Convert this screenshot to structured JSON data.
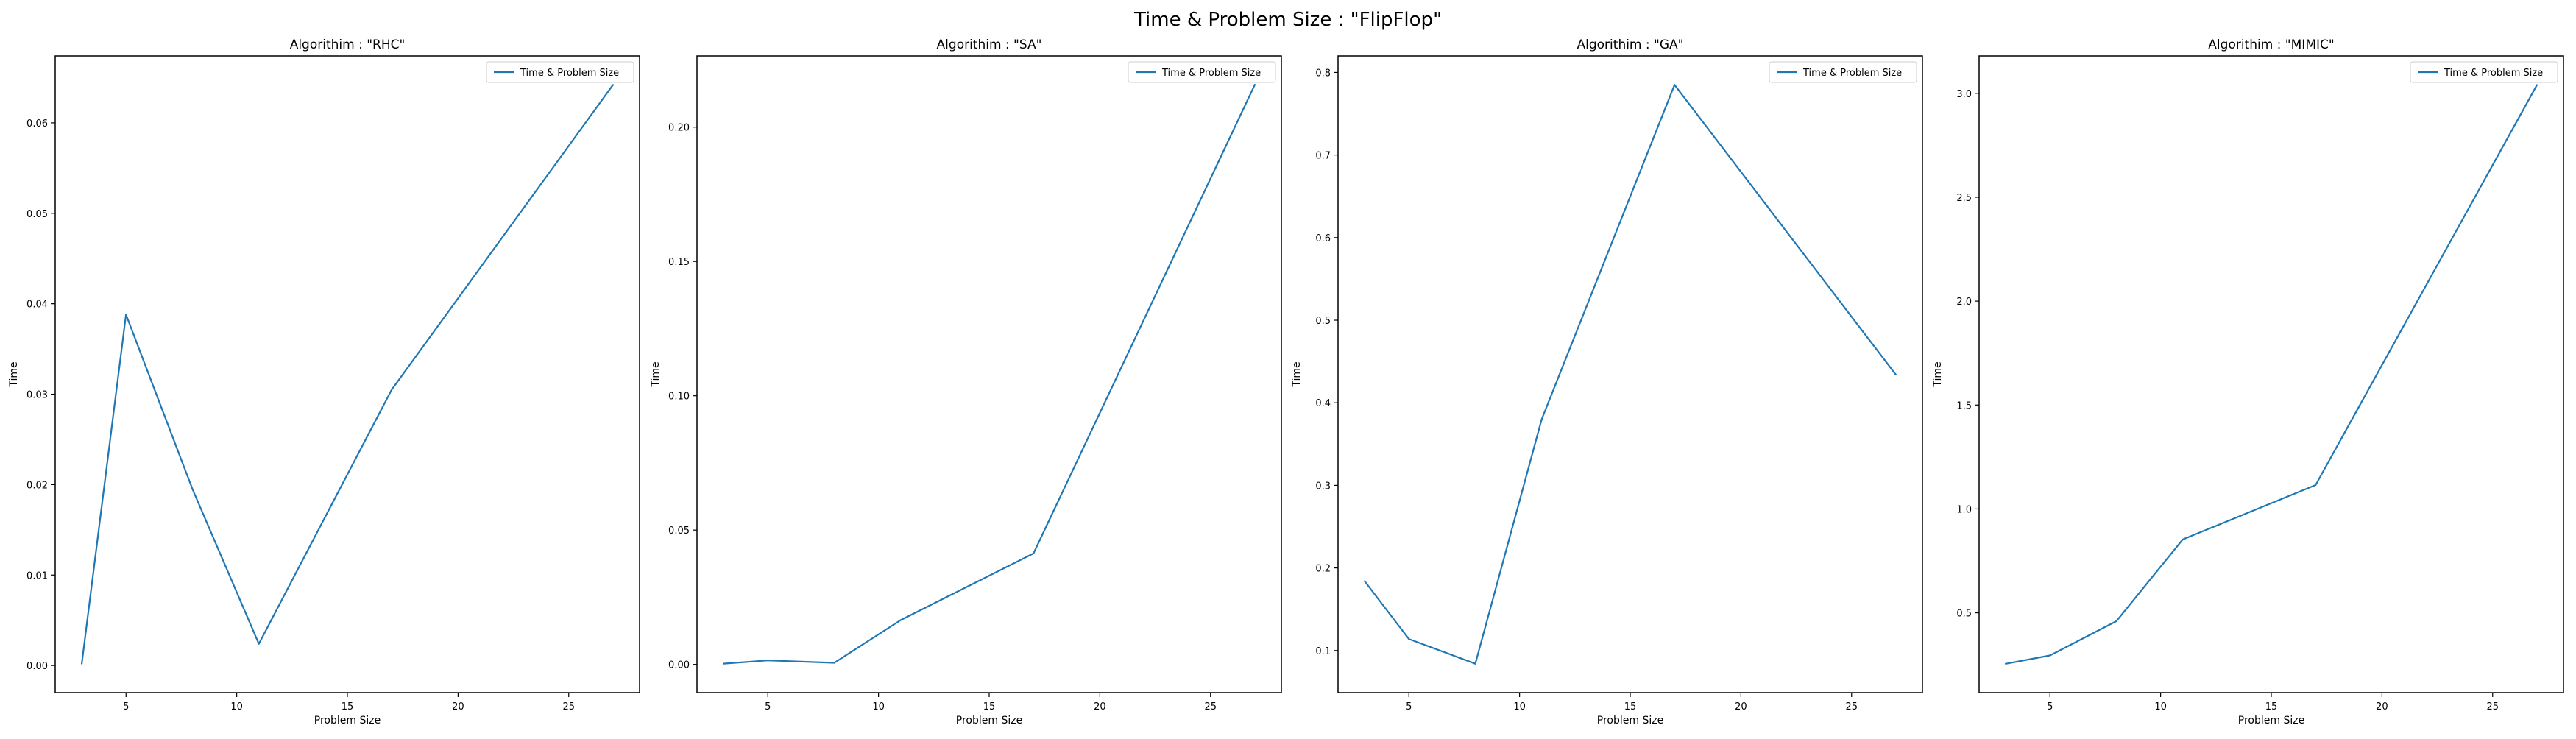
{
  "figure": {
    "title": "Time & Problem Size : \"FlipFlop\""
  },
  "chart_data": [
    {
      "type": "line",
      "title": "Algorithim : \"RHC\"",
      "xlabel": "Problem Size",
      "ylabel": "Time",
      "series": [
        {
          "name": "Time & Problem Size",
          "color": "#1f77b4",
          "x": [
            3,
            5,
            8,
            11,
            17,
            27
          ],
          "y": [
            0.0002,
            0.0388,
            0.0195,
            0.0024,
            0.0305,
            0.0642
          ]
        }
      ],
      "xlim": [
        1.8,
        28.2
      ],
      "ylim": [
        -0.003,
        0.0674
      ],
      "xticks": [
        5,
        10,
        15,
        20,
        25
      ],
      "xtick_labels": [
        "5",
        "10",
        "15",
        "20",
        "25"
      ],
      "yticks": [
        0.0,
        0.01,
        0.02,
        0.03,
        0.04,
        0.05,
        0.06
      ],
      "ytick_labels": [
        "0.00",
        "0.01",
        "0.02",
        "0.03",
        "0.04",
        "0.05",
        "0.06"
      ],
      "legend": "upper right",
      "grid": false
    },
    {
      "type": "line",
      "title": "Algorithim : \"SA\"",
      "xlabel": "Problem Size",
      "ylabel": "Time",
      "series": [
        {
          "name": "Time & Problem Size",
          "color": "#1f77b4",
          "x": [
            3,
            5,
            8,
            11,
            17,
            27
          ],
          "y": [
            0.0003,
            0.0015,
            0.0006,
            0.0165,
            0.0413,
            0.2158
          ]
        }
      ],
      "xlim": [
        1.8,
        28.2
      ],
      "ylim": [
        -0.0105,
        0.2265
      ],
      "xticks": [
        5,
        10,
        15,
        20,
        25
      ],
      "xtick_labels": [
        "5",
        "10",
        "15",
        "20",
        "25"
      ],
      "yticks": [
        0.0,
        0.05,
        0.1,
        0.15,
        0.2
      ],
      "ytick_labels": [
        "0.00",
        "0.05",
        "0.10",
        "0.15",
        "0.20"
      ],
      "legend": "upper right",
      "grid": false
    },
    {
      "type": "line",
      "title": "Algorithim : \"GA\"",
      "xlabel": "Problem Size",
      "ylabel": "Time",
      "series": [
        {
          "name": "Time & Problem Size",
          "color": "#1f77b4",
          "x": [
            3,
            5,
            8,
            11,
            17,
            27
          ],
          "y": [
            0.184,
            0.114,
            0.084,
            0.38,
            0.785,
            0.434
          ]
        }
      ],
      "xlim": [
        1.8,
        28.2
      ],
      "ylim": [
        0.049,
        0.82
      ],
      "xticks": [
        5,
        10,
        15,
        20,
        25
      ],
      "xtick_labels": [
        "5",
        "10",
        "15",
        "20",
        "25"
      ],
      "yticks": [
        0.1,
        0.2,
        0.3,
        0.4,
        0.5,
        0.6,
        0.7,
        0.8
      ],
      "ytick_labels": [
        "0.1",
        "0.2",
        "0.3",
        "0.4",
        "0.5",
        "0.6",
        "0.7",
        "0.8"
      ],
      "legend": "upper right",
      "grid": false
    },
    {
      "type": "line",
      "title": "Algorithim : \"MIMIC\"",
      "xlabel": "Problem Size",
      "ylabel": "Time",
      "series": [
        {
          "name": "Time & Problem Size",
          "color": "#1f77b4",
          "x": [
            3,
            5,
            8,
            11,
            17,
            27
          ],
          "y": [
            0.255,
            0.295,
            0.46,
            0.853,
            1.115,
            3.04
          ]
        }
      ],
      "xlim": [
        1.8,
        28.2
      ],
      "ylim": [
        0.116,
        3.18
      ],
      "xticks": [
        5,
        10,
        15,
        20,
        25
      ],
      "xtick_labels": [
        "5",
        "10",
        "15",
        "20",
        "25"
      ],
      "yticks": [
        0.5,
        1.0,
        1.5,
        2.0,
        2.5,
        3.0
      ],
      "ytick_labels": [
        "0.5",
        "1.0",
        "1.5",
        "2.0",
        "2.5",
        "3.0"
      ],
      "legend": "upper right",
      "grid": false
    }
  ]
}
